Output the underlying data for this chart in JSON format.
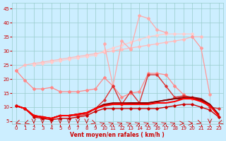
{
  "x": [
    0,
    1,
    2,
    3,
    4,
    5,
    6,
    7,
    8,
    9,
    10,
    11,
    12,
    13,
    14,
    15,
    16,
    17,
    18,
    19,
    20,
    21,
    22,
    23
  ],
  "series": [
    {
      "name": "upper_lightest",
      "y": [
        23.0,
        null,
        null,
        null,
        null,
        null,
        null,
        null,
        null,
        null,
        null,
        null,
        null,
        null,
        null,
        null,
        null,
        null,
        null,
        null,
        null,
        null,
        null,
        null
      ],
      "color": "#ffbbbb",
      "lw": 0.8,
      "marker": "D",
      "ms": 2.0,
      "zorder": 2
    },
    {
      "name": "upper_band_top",
      "y": [
        23.0,
        null,
        null,
        null,
        null,
        null,
        null,
        null,
        null,
        null,
        null,
        null,
        null,
        null,
        null,
        null,
        null,
        null,
        null,
        null,
        null,
        null,
        null,
        null
      ],
      "color": "#ffcccc",
      "lw": 0.8,
      "marker": "D",
      "ms": 2.0,
      "zorder": 2
    },
    {
      "name": "line_top1",
      "y": [
        23.0,
        25.0,
        25.5,
        26.0,
        26.5,
        27.0,
        27.5,
        28.0,
        28.5,
        29.0,
        29.5,
        30.0,
        30.5,
        31.0,
        31.5,
        32.0,
        32.5,
        33.0,
        33.5,
        34.0,
        35.0,
        35.0,
        null,
        null
      ],
      "color": "#ffbbbb",
      "lw": 0.9,
      "marker": "D",
      "ms": 2.0,
      "zorder": 2
    },
    {
      "name": "line_top2",
      "y": [
        23.0,
        null,
        25.0,
        25.5,
        26.0,
        26.5,
        27.0,
        27.5,
        28.0,
        28.5,
        30.0,
        31.0,
        32.0,
        33.0,
        34.0,
        35.0,
        35.5,
        36.0,
        36.0,
        36.0,
        36.0,
        null,
        null,
        null
      ],
      "color": "#ffcccc",
      "lw": 0.9,
      "marker": "D",
      "ms": 2.0,
      "zorder": 2
    },
    {
      "name": "line_spiky",
      "y": [
        null,
        null,
        null,
        null,
        null,
        null,
        null,
        null,
        null,
        null,
        32.5,
        17.5,
        33.5,
        30.5,
        42.5,
        41.5,
        37.5,
        36.5,
        null,
        null,
        null,
        null,
        null,
        null
      ],
      "color": "#ffaaaa",
      "lw": 0.9,
      "marker": "D",
      "ms": 2.0,
      "zorder": 3
    },
    {
      "name": "line_mid_pink",
      "y": [
        23.0,
        19.5,
        16.5,
        16.5,
        17.0,
        15.5,
        15.5,
        15.5,
        16.0,
        16.5,
        20.5,
        17.5,
        13.5,
        15.0,
        15.5,
        22.0,
        22.0,
        21.5,
        17.5,
        14.5,
        13.0,
        12.5,
        null,
        null
      ],
      "color": "#ff8888",
      "lw": 0.9,
      "marker": "D",
      "ms": 2.0,
      "zorder": 3
    },
    {
      "name": "line_right_drop",
      "y": [
        null,
        null,
        null,
        null,
        null,
        null,
        null,
        null,
        null,
        null,
        null,
        null,
        null,
        null,
        null,
        null,
        null,
        null,
        null,
        null,
        35.0,
        31.0,
        14.5,
        null
      ],
      "color": "#ff9999",
      "lw": 0.9,
      "marker": "D",
      "ms": 2.0,
      "zorder": 2
    },
    {
      "name": "line_dark_spiky",
      "y": [
        10.5,
        9.5,
        7.0,
        6.5,
        6.0,
        7.0,
        7.0,
        7.0,
        7.5,
        9.5,
        12.5,
        17.5,
        11.0,
        15.5,
        11.5,
        21.5,
        21.5,
        17.5,
        13.5,
        14.0,
        13.5,
        12.5,
        10.0,
        9.5
      ],
      "color": "#dd3333",
      "lw": 1.0,
      "marker": "D",
      "ms": 1.8,
      "zorder": 4
    },
    {
      "name": "line_flat_dark1",
      "y": [
        10.5,
        9.5,
        7.0,
        6.5,
        6.0,
        7.0,
        7.0,
        7.5,
        8.0,
        9.5,
        11.0,
        11.5,
        11.5,
        11.5,
        11.5,
        11.5,
        12.0,
        12.5,
        13.0,
        13.5,
        13.5,
        13.0,
        11.0,
        7.5
      ],
      "color": "#990000",
      "lw": 1.3,
      "marker": null,
      "ms": 0,
      "zorder": 5
    },
    {
      "name": "line_flat_dark2",
      "y": [
        10.5,
        9.5,
        7.0,
        6.5,
        6.0,
        7.0,
        7.0,
        7.5,
        8.0,
        9.5,
        11.0,
        11.0,
        11.0,
        11.5,
        11.5,
        11.5,
        12.0,
        12.5,
        13.0,
        13.0,
        13.0,
        12.5,
        11.0,
        7.0
      ],
      "color": "#880000",
      "lw": 1.3,
      "marker": null,
      "ms": 0,
      "zorder": 5
    },
    {
      "name": "line_bottom_flat",
      "y": [
        10.5,
        9.5,
        7.0,
        6.5,
        6.0,
        7.0,
        7.0,
        7.5,
        8.0,
        9.5,
        10.5,
        11.0,
        11.0,
        11.0,
        11.0,
        11.0,
        11.5,
        11.5,
        12.0,
        13.0,
        13.0,
        12.0,
        10.5,
        7.0
      ],
      "color": "#ff0000",
      "lw": 1.5,
      "marker": null,
      "ms": 0,
      "zorder": 5
    },
    {
      "name": "line_very_bottom",
      "y": [
        10.5,
        9.5,
        6.5,
        6.0,
        5.5,
        6.0,
        6.0,
        6.5,
        7.0,
        8.5,
        9.5,
        9.5,
        9.5,
        9.5,
        9.5,
        9.5,
        9.5,
        10.0,
        10.5,
        11.0,
        11.0,
        10.0,
        9.0,
        6.5
      ],
      "color": "#cc0000",
      "lw": 1.0,
      "marker": "D",
      "ms": 1.8,
      "zorder": 4
    }
  ],
  "xlabel": "Vent moyen/en rafales ( km/h )",
  "xlim": [
    -0.5,
    23.5
  ],
  "ylim": [
    4,
    47
  ],
  "yticks": [
    5,
    10,
    15,
    20,
    25,
    30,
    35,
    40,
    45
  ],
  "xticks": [
    0,
    1,
    2,
    3,
    4,
    5,
    6,
    7,
    8,
    9,
    10,
    11,
    12,
    13,
    14,
    15,
    16,
    17,
    18,
    19,
    20,
    21,
    22,
    23
  ],
  "bg_color": "#cceeff",
  "grid_color": "#99cccc",
  "tick_color": "#cc0000",
  "label_color": "#cc0000"
}
